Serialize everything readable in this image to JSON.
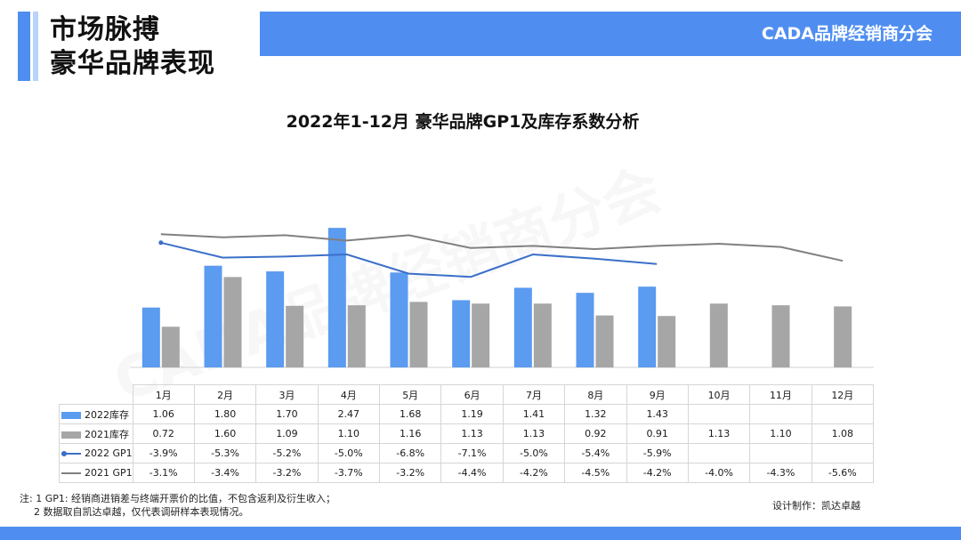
{
  "header": {
    "title_line1": "市场脉搏",
    "title_line2": "豪华品牌表现",
    "brand": "CADA品牌经销商分会"
  },
  "chart_data": {
    "type": "bar",
    "title": "2022年1-12月 豪华品牌GP1及库存系数分析",
    "categories": [
      "1月",
      "2月",
      "3月",
      "4月",
      "5月",
      "6月",
      "7月",
      "8月",
      "9月",
      "10月",
      "11月",
      "12月"
    ],
    "series": [
      {
        "name": "2022库存",
        "kind": "bar",
        "values": [
          1.06,
          1.8,
          1.7,
          2.47,
          1.68,
          1.19,
          1.41,
          1.32,
          1.43,
          null,
          null,
          null
        ],
        "labels": [
          "1.06",
          "1.80",
          "1.70",
          "2.47",
          "1.68",
          "1.19",
          "1.41",
          "1.32",
          "1.43",
          "",
          "",
          ""
        ]
      },
      {
        "name": "2021库存",
        "kind": "bar",
        "values": [
          0.72,
          1.6,
          1.09,
          1.1,
          1.16,
          1.13,
          1.13,
          0.92,
          0.91,
          1.13,
          1.1,
          1.08
        ],
        "labels": [
          "0.72",
          "1.60",
          "1.09",
          "1.10",
          "1.16",
          "1.13",
          "1.13",
          "0.92",
          "0.91",
          "1.13",
          "1.10",
          "1.08"
        ]
      },
      {
        "name": "2022 GP1",
        "kind": "line",
        "values": [
          -3.9,
          -5.3,
          -5.2,
          -5.0,
          -6.8,
          -7.1,
          -5.0,
          -5.4,
          -5.9,
          null,
          null,
          null
        ],
        "labels": [
          "-3.9%",
          "-5.3%",
          "-5.2%",
          "-5.0%",
          "-6.8%",
          "-7.1%",
          "-5.0%",
          "-5.4%",
          "-5.9%",
          "",
          "",
          ""
        ]
      },
      {
        "name": "2021 GP1",
        "kind": "line",
        "values": [
          -3.1,
          -3.4,
          -3.2,
          -3.7,
          -3.2,
          -4.4,
          -4.2,
          -4.5,
          -4.2,
          -4.0,
          -4.3,
          -5.6
        ],
        "labels": [
          "-3.1%",
          "-3.4%",
          "-3.2%",
          "-3.7%",
          "-3.2%",
          "-4.4%",
          "-4.2%",
          "-4.5%",
          "-4.2%",
          "-4.0%",
          "-4.3%",
          "-5.6%"
        ]
      }
    ],
    "colors": {
      "bar2022": "#5b9bf0",
      "bar2021": "#a6a6a6",
      "line2022": "#3b6fc9",
      "line2021": "#808080"
    }
  },
  "footnote": {
    "line1": "注: 1 GP1: 经销商进销差与终端开票价的比值，不包含返利及衍生收入；",
    "line2": "2 数据取自凯达卓越，仅代表调研样本表现情况。"
  },
  "credit": "设计制作：凯达卓越",
  "watermark": "CADA品牌经销商分会"
}
